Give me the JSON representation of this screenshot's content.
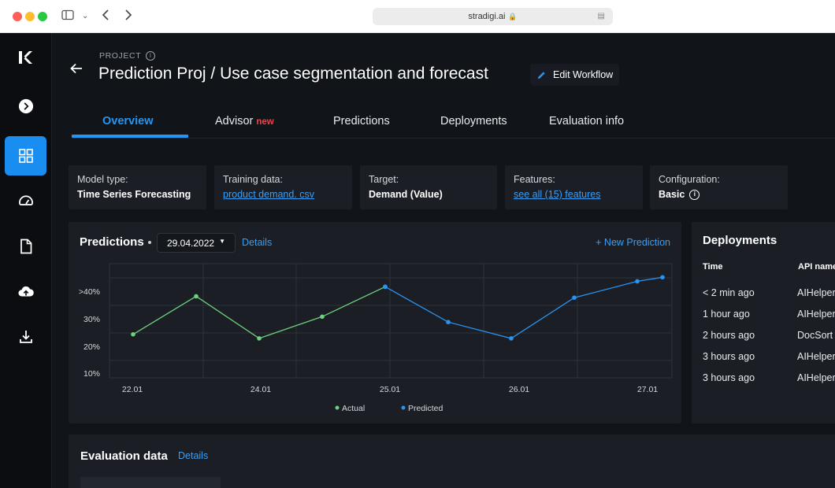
{
  "browser": {
    "url": "stradigi.ai"
  },
  "sidebar": {
    "items": [
      {
        "name": "expand",
        "icon": "chevron-right-circle-icon"
      },
      {
        "name": "dashboard",
        "icon": "grid-icon",
        "active": true
      },
      {
        "name": "performance",
        "icon": "speedometer-icon"
      },
      {
        "name": "documents",
        "icon": "document-icon"
      },
      {
        "name": "upload",
        "icon": "cloud-upload-icon"
      },
      {
        "name": "download",
        "icon": "download-icon"
      }
    ]
  },
  "header": {
    "project_label": "PROJECT",
    "title": "Prediction Proj / Use case segmentation and forecast",
    "edit_label": "Edit Workflow"
  },
  "tabs": [
    {
      "label": "Overview",
      "active": true
    },
    {
      "label": "Advisor",
      "badge": "new"
    },
    {
      "label": "Predictions"
    },
    {
      "label": "Deployments"
    },
    {
      "label": "Evaluation info"
    }
  ],
  "info_cards": [
    {
      "label": "Model type:",
      "value": "Time Series Forecasting"
    },
    {
      "label": "Training data:",
      "link": "product demand. csv"
    },
    {
      "label": "Target:",
      "value": "Demand (Value)"
    },
    {
      "label": "Features:",
      "link": "see all (15) features"
    },
    {
      "label": "Configuration:",
      "value": "Basic"
    }
  ],
  "predictions": {
    "title": "Predictions",
    "date": "29.04.2022",
    "details_label": "Details",
    "new_label": "+ New Prediction"
  },
  "chart_data": {
    "type": "line",
    "y_ticks": [
      ">40%",
      "30%",
      "20%",
      "10%"
    ],
    "x_ticks": [
      "22.01",
      "24.01",
      "25.01",
      "26.01",
      "27.01"
    ],
    "ylim": [
      5,
      47
    ],
    "series": [
      {
        "name": "Actual",
        "color": "#6fd07f",
        "points": [
          [
            0,
            21
          ],
          [
            1,
            35
          ],
          [
            2,
            19.5
          ],
          [
            3,
            27.5
          ],
          [
            4,
            38.5
          ]
        ]
      },
      {
        "name": "Predicted",
        "color": "#2a93f0",
        "points": [
          [
            4,
            38.5
          ],
          [
            5,
            25.5
          ],
          [
            6,
            19.5
          ],
          [
            7,
            34.5
          ],
          [
            8,
            40.5
          ],
          [
            8.4,
            42
          ]
        ]
      }
    ]
  },
  "deployments": {
    "title": "Deployments",
    "columns": [
      "Time",
      "API name"
    ],
    "rows": [
      [
        "< 2 min ago",
        "AIHelper"
      ],
      [
        "1 hour ago",
        "AIHelper"
      ],
      [
        "2 hours ago",
        "DocSort"
      ],
      [
        "3 hours ago",
        "AIHelper"
      ],
      [
        "3 hours ago",
        "AIHelper"
      ]
    ]
  },
  "evaluation": {
    "title": "Evaluation data",
    "details_label": "Details"
  }
}
